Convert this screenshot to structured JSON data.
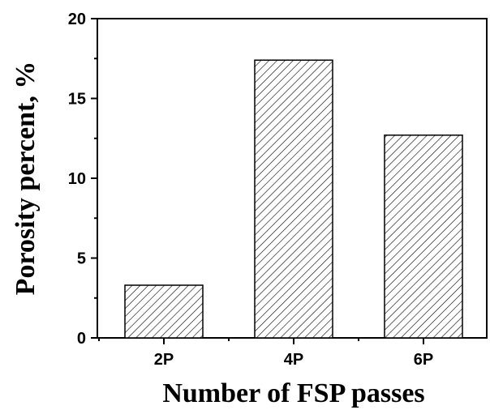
{
  "chart_data": {
    "type": "bar",
    "title": "",
    "xlabel": "Number of FSP passes",
    "ylabel": "Porosity percent, %",
    "categories": [
      "2P",
      "4P",
      "6P"
    ],
    "values": [
      3.3,
      17.4,
      12.7
    ],
    "ylim": [
      0,
      20
    ],
    "yticks": [
      "0",
      "5",
      "10",
      "15",
      "20"
    ],
    "bar_fill": "diagonal-hatch",
    "grid": false,
    "legend": "none"
  },
  "colors": {
    "axis": "#000000",
    "bar_edge": "#000000",
    "hatch": "#000000",
    "background": "#ffffff"
  }
}
